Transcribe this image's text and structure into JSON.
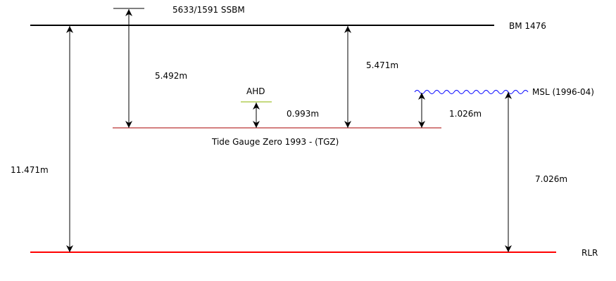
{
  "levels": {
    "ssbm": {
      "label": "5633/1591 SSBM"
    },
    "bm": {
      "label": "BM 1476",
      "color": "#000000"
    },
    "ahd": {
      "label": "AHD",
      "color": "#8db600"
    },
    "msl": {
      "label": "MSL (1996-04)",
      "color": "#0000ff"
    },
    "tgz": {
      "label": "Tide Gauge Zero 1993 - (TGZ)",
      "color": "#aa0000"
    },
    "rlr": {
      "label": "RLR",
      "color": "#ff0000"
    }
  },
  "measurements": {
    "bm_to_rlr": "11.471m",
    "ssbm_to_tgz": "5.492m",
    "bm_to_tgz": "5.471m",
    "ahd_to_tgz": "0.993m",
    "msl_to_tgz": "1.026m",
    "msl_to_rlr": "7.026m"
  }
}
